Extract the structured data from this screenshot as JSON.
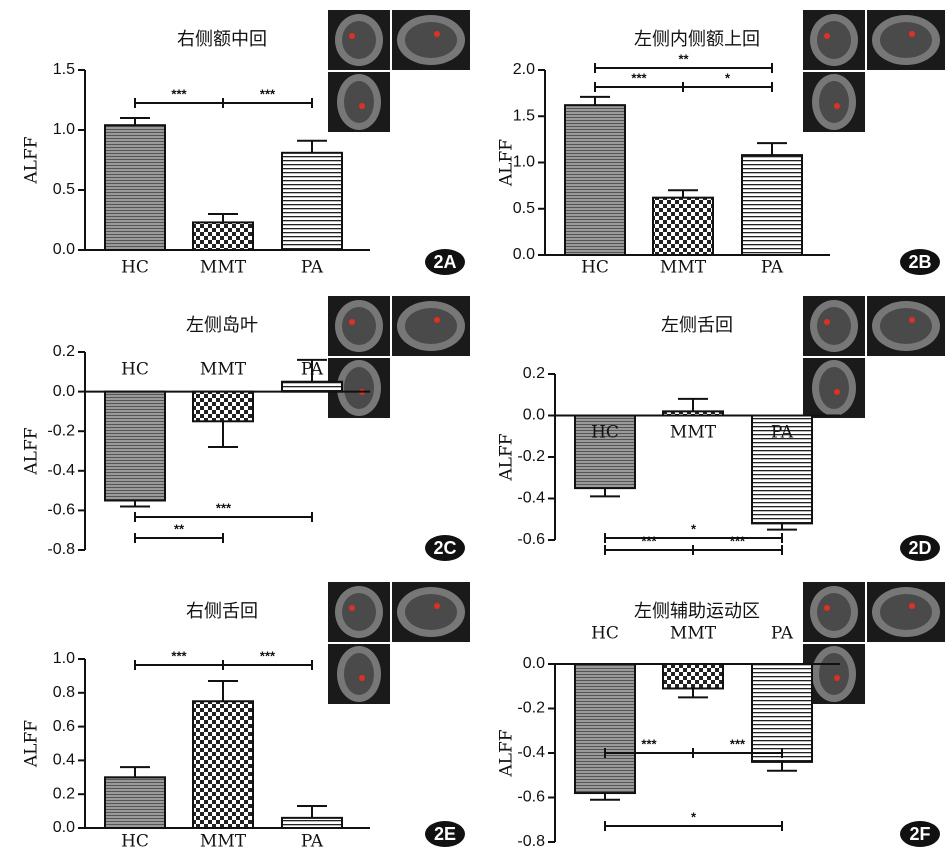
{
  "chart_data": [
    {
      "type": "bar",
      "title": "右侧额中回",
      "panel_label": "2A",
      "ylabel": "ALFF",
      "categories": [
        "HC",
        "MMT",
        "PA"
      ],
      "values": [
        1.04,
        0.23,
        0.81
      ],
      "errors": [
        0.06,
        0.07,
        0.1
      ],
      "ylim": [
        0,
        1.5
      ],
      "yticks": [
        {
          "value": 0,
          "label": "0.0"
        },
        0.5,
        {
          "value": 1,
          "label": "1.0"
        },
        1.5
      ],
      "annotations": [
        "***",
        "***"
      ]
    },
    {
      "type": "bar",
      "title": "左侧内侧额上回",
      "panel_label": "2B",
      "ylabel": "ALFF",
      "categories": [
        "HC",
        "MMT",
        "PA"
      ],
      "values": [
        1.62,
        0.62,
        1.08
      ],
      "errors": [
        0.09,
        0.08,
        0.13
      ],
      "ylim": [
        0,
        2
      ],
      "yticks": [
        {
          "value": 0,
          "label": "0.0"
        },
        0.5,
        {
          "value": 1,
          "label": "1.0"
        },
        1.5,
        {
          "value": 2,
          "label": "2.0"
        }
      ],
      "annotations": [
        "**",
        "***",
        "*"
      ]
    },
    {
      "type": "bar",
      "title": "左侧岛叶",
      "panel_label": "2C",
      "ylabel": "ALFF",
      "categories": [
        "HC",
        "MMT",
        "PA"
      ],
      "values": [
        -0.55,
        -0.15,
        0.05
      ],
      "errors": [
        0.03,
        0.13,
        0.11
      ],
      "ylim": [
        -0.8,
        0.2
      ],
      "yticks": [
        0.2,
        {
          "value": 0,
          "label": "0.0"
        },
        -0.2,
        -0.4,
        -0.6,
        -0.8
      ],
      "annotations": [
        "***",
        "**"
      ]
    },
    {
      "type": "bar",
      "title": "左侧舌回",
      "panel_label": "2D",
      "ylabel": "ALFF",
      "categories": [
        "HC",
        "MMT",
        "PA"
      ],
      "values": [
        -0.35,
        0.02,
        -0.52
      ],
      "errors": [
        0.04,
        0.06,
        0.03
      ],
      "ylim": [
        -0.6,
        0.2
      ],
      "yticks": [
        0.2,
        {
          "value": 0,
          "label": "0.0"
        },
        -0.2,
        -0.4,
        -0.6
      ],
      "annotations": [
        "*",
        "***",
        "***"
      ]
    },
    {
      "type": "bar",
      "title": "右侧舌回",
      "panel_label": "2E",
      "ylabel": "ALFF",
      "categories": [
        "HC",
        "MMT",
        "PA"
      ],
      "values": [
        0.3,
        0.75,
        0.06
      ],
      "errors": [
        0.06,
        0.12,
        0.07
      ],
      "ylim": [
        0,
        1
      ],
      "yticks": [
        {
          "value": 0,
          "label": "0.0"
        },
        0.2,
        0.4,
        0.6,
        0.8,
        {
          "value": 1,
          "label": "1.0"
        }
      ],
      "annotations": [
        "***",
        "***"
      ]
    },
    {
      "type": "bar",
      "title": "左侧辅助运动区",
      "panel_label": "2F",
      "ylabel": "ALFF",
      "categories": [
        "HC",
        "MMT",
        "PA"
      ],
      "values": [
        -0.58,
        -0.11,
        -0.44
      ],
      "errors": [
        0.03,
        0.04,
        0.04
      ],
      "ylim": [
        -0.8,
        0
      ],
      "yticks": [
        {
          "value": 0,
          "label": "0.0"
        },
        -0.2,
        -0.4,
        -0.6,
        -0.8
      ],
      "annotations": [
        "***",
        "***",
        "*"
      ]
    }
  ]
}
